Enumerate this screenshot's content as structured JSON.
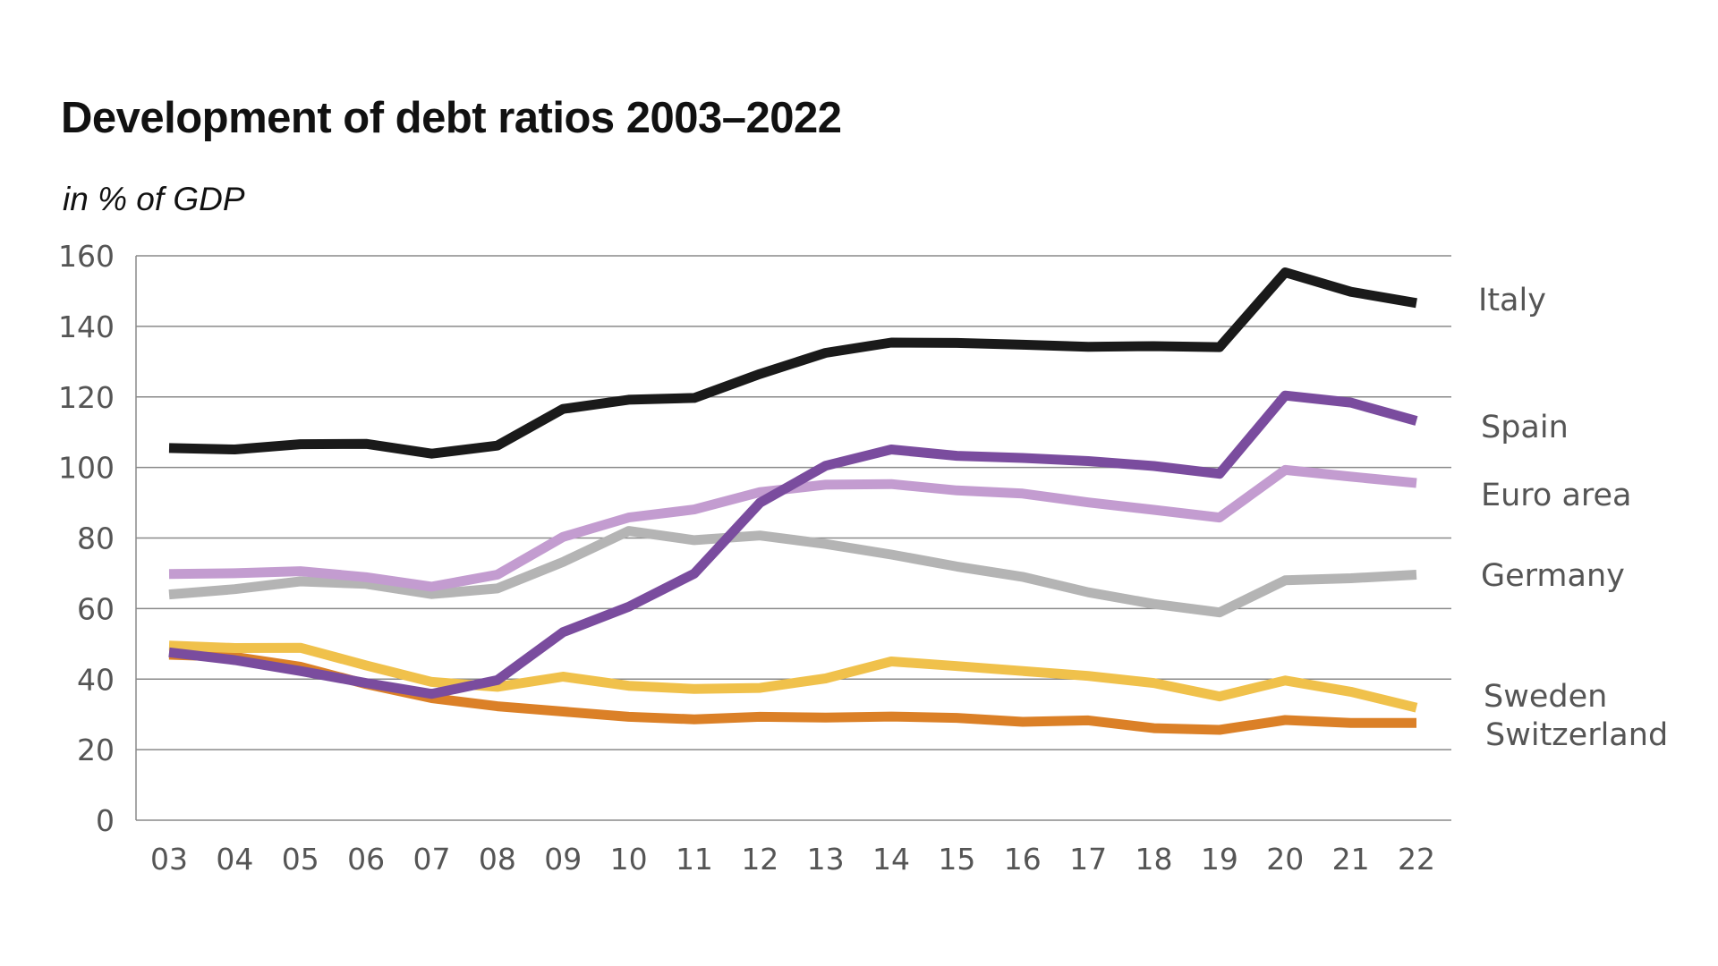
{
  "chart_data": {
    "type": "line",
    "title": "Development of debt ratios 2003–2022",
    "subtitle": "in % of GDP",
    "xlabel": "",
    "ylabel": "",
    "categories": [
      "03",
      "04",
      "05",
      "06",
      "07",
      "08",
      "09",
      "10",
      "11",
      "12",
      "13",
      "14",
      "15",
      "16",
      "17",
      "18",
      "19",
      "20",
      "21",
      "22"
    ],
    "ylim": [
      0,
      160
    ],
    "yticks": [
      0,
      20,
      40,
      60,
      80,
      100,
      120,
      140,
      160
    ],
    "grid": true,
    "series": [
      {
        "name": "Italy",
        "color": "#1a1a1a",
        "values": [
          105.5,
          105.1,
          106.6,
          106.7,
          103.9,
          106.2,
          116.6,
          119.2,
          119.7,
          126.5,
          132.5,
          135.4,
          135.3,
          134.8,
          134.2,
          134.4,
          134.1,
          155.3,
          149.8,
          146.6
        ]
      },
      {
        "name": "Spain",
        "color": "#7a4c9e",
        "values": [
          47.6,
          45.4,
          42.3,
          38.9,
          35.8,
          39.7,
          53.3,
          60.5,
          69.9,
          90.0,
          100.5,
          105.1,
          103.3,
          102.7,
          101.8,
          100.4,
          98.2,
          120.4,
          118.4,
          113.2
        ]
      },
      {
        "name": "Euro area",
        "color": "#c39cd0",
        "values": [
          69.8,
          70.0,
          70.6,
          68.9,
          66.2,
          69.6,
          80.3,
          85.8,
          88.1,
          93.0,
          95.1,
          95.3,
          93.5,
          92.6,
          90.1,
          88.0,
          85.8,
          99.3,
          97.4,
          95.6
        ]
      },
      {
        "name": "Germany",
        "color": "#b4b4b4",
        "values": [
          64.0,
          65.5,
          67.7,
          67.0,
          64.1,
          65.7,
          73.2,
          82.0,
          79.4,
          80.7,
          78.3,
          75.3,
          71.9,
          69.0,
          64.6,
          61.3,
          58.9,
          68.0,
          68.6,
          69.6
        ]
      },
      {
        "name": "Sweden",
        "color": "#f0c14b",
        "values": [
          49.5,
          48.8,
          48.9,
          43.9,
          39.2,
          37.8,
          40.7,
          38.1,
          37.2,
          37.5,
          40.2,
          45.0,
          43.7,
          42.3,
          40.9,
          38.9,
          35.1,
          39.6,
          36.4,
          31.9
        ]
      },
      {
        "name": "Switzerland",
        "color": "#db8027",
        "values": [
          46.9,
          46.3,
          43.5,
          38.6,
          34.6,
          32.3,
          30.8,
          29.3,
          28.6,
          29.3,
          29.1,
          29.4,
          29.0,
          27.9,
          28.3,
          26.1,
          25.6,
          28.4,
          27.6,
          27.6
        ]
      }
    ]
  }
}
